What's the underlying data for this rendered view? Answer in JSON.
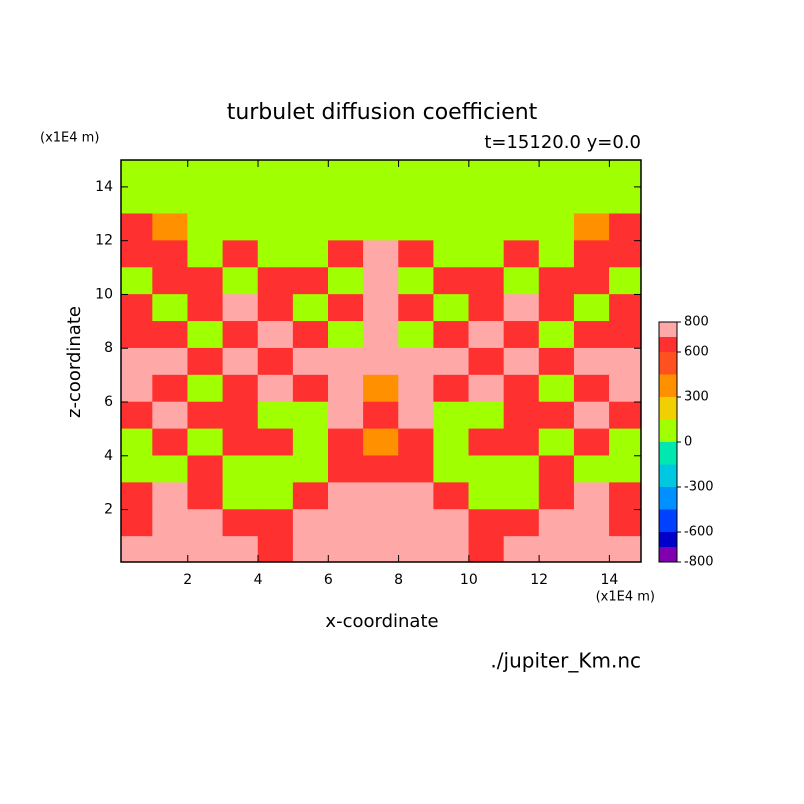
{
  "chart_data": {
    "type": "contour",
    "title": "turbulet diffusion coefficient",
    "subtitle": "t=15120.0 y=0.0",
    "x_unit": "(x1E4 m)",
    "y_unit": "(x1E4 m)",
    "x_label": "x-coordinate",
    "y_label": "z-coordinate",
    "source": "./jupiter_Km.nc",
    "xlim": [
      0.1,
      14.9
    ],
    "ylim": [
      0.05,
      15
    ],
    "xticks": [
      2,
      4,
      6,
      8,
      10,
      12,
      14
    ],
    "yticks": [
      2,
      4,
      6,
      8,
      10,
      12,
      14
    ],
    "x": [
      0.5,
      1.5,
      2.5,
      3.5,
      4.5,
      5.5,
      6.5,
      7.5,
      8.5,
      9.5,
      10.5,
      11.5,
      12.5,
      13.5,
      14.5
    ],
    "y": [
      14.5,
      13.5,
      12.5,
      11.5,
      10.5,
      9.5,
      8.5,
      7.5,
      6.5,
      5.5,
      4.5,
      3.5,
      2.5,
      1.5,
      0.5
    ],
    "z": [
      [
        50,
        50,
        50,
        50,
        50,
        50,
        50,
        50,
        50,
        50,
        50,
        50,
        50,
        50,
        50
      ],
      [
        50,
        50,
        50,
        50,
        50,
        50,
        50,
        50,
        50,
        50,
        50,
        50,
        50,
        50,
        50
      ],
      [
        650,
        400,
        100,
        50,
        50,
        50,
        50,
        50,
        50,
        50,
        50,
        50,
        100,
        400,
        650
      ],
      [
        600,
        650,
        100,
        650,
        50,
        100,
        650,
        750,
        650,
        100,
        50,
        650,
        100,
        650,
        600
      ],
      [
        50,
        650,
        650,
        100,
        650,
        650,
        100,
        750,
        100,
        650,
        650,
        100,
        650,
        650,
        50
      ],
      [
        650,
        100,
        650,
        750,
        650,
        100,
        650,
        750,
        650,
        100,
        650,
        750,
        650,
        100,
        650
      ],
      [
        650,
        650,
        100,
        650,
        750,
        650,
        100,
        750,
        100,
        650,
        750,
        650,
        100,
        650,
        650
      ],
      [
        750,
        750,
        650,
        750,
        650,
        750,
        750,
        750,
        750,
        750,
        650,
        750,
        650,
        750,
        750
      ],
      [
        750,
        650,
        100,
        650,
        750,
        650,
        750,
        400,
        750,
        650,
        750,
        650,
        100,
        650,
        750
      ],
      [
        650,
        750,
        650,
        650,
        100,
        100,
        750,
        650,
        750,
        100,
        100,
        650,
        650,
        750,
        650
      ],
      [
        100,
        650,
        100,
        650,
        650,
        100,
        650,
        400,
        650,
        100,
        650,
        650,
        100,
        650,
        100
      ],
      [
        100,
        100,
        650,
        100,
        100,
        100,
        650,
        650,
        650,
        100,
        100,
        100,
        650,
        100,
        100
      ],
      [
        650,
        750,
        650,
        100,
        100,
        650,
        750,
        750,
        750,
        650,
        100,
        100,
        650,
        750,
        650
      ],
      [
        650,
        750,
        750,
        650,
        650,
        750,
        750,
        750,
        750,
        750,
        650,
        650,
        750,
        750,
        650
      ],
      [
        750,
        750,
        750,
        750,
        650,
        750,
        750,
        750,
        750,
        750,
        650,
        750,
        750,
        750,
        750
      ]
    ],
    "levels": [
      -800,
      -700,
      -600,
      -450,
      -300,
      -150,
      0,
      150,
      300,
      450,
      600,
      700,
      800
    ],
    "colors": [
      "#8000b0",
      "#0000c8",
      "#0040ff",
      "#0090ff",
      "#00c8e0",
      "#00e8b0",
      "#a0ff00",
      "#f0d000",
      "#ff9000",
      "#ff5020",
      "#ff3030",
      "#ffa8a8"
    ],
    "colorbar_ticks": [
      800,
      600,
      300,
      0,
      -300,
      -600,
      -800
    ]
  }
}
